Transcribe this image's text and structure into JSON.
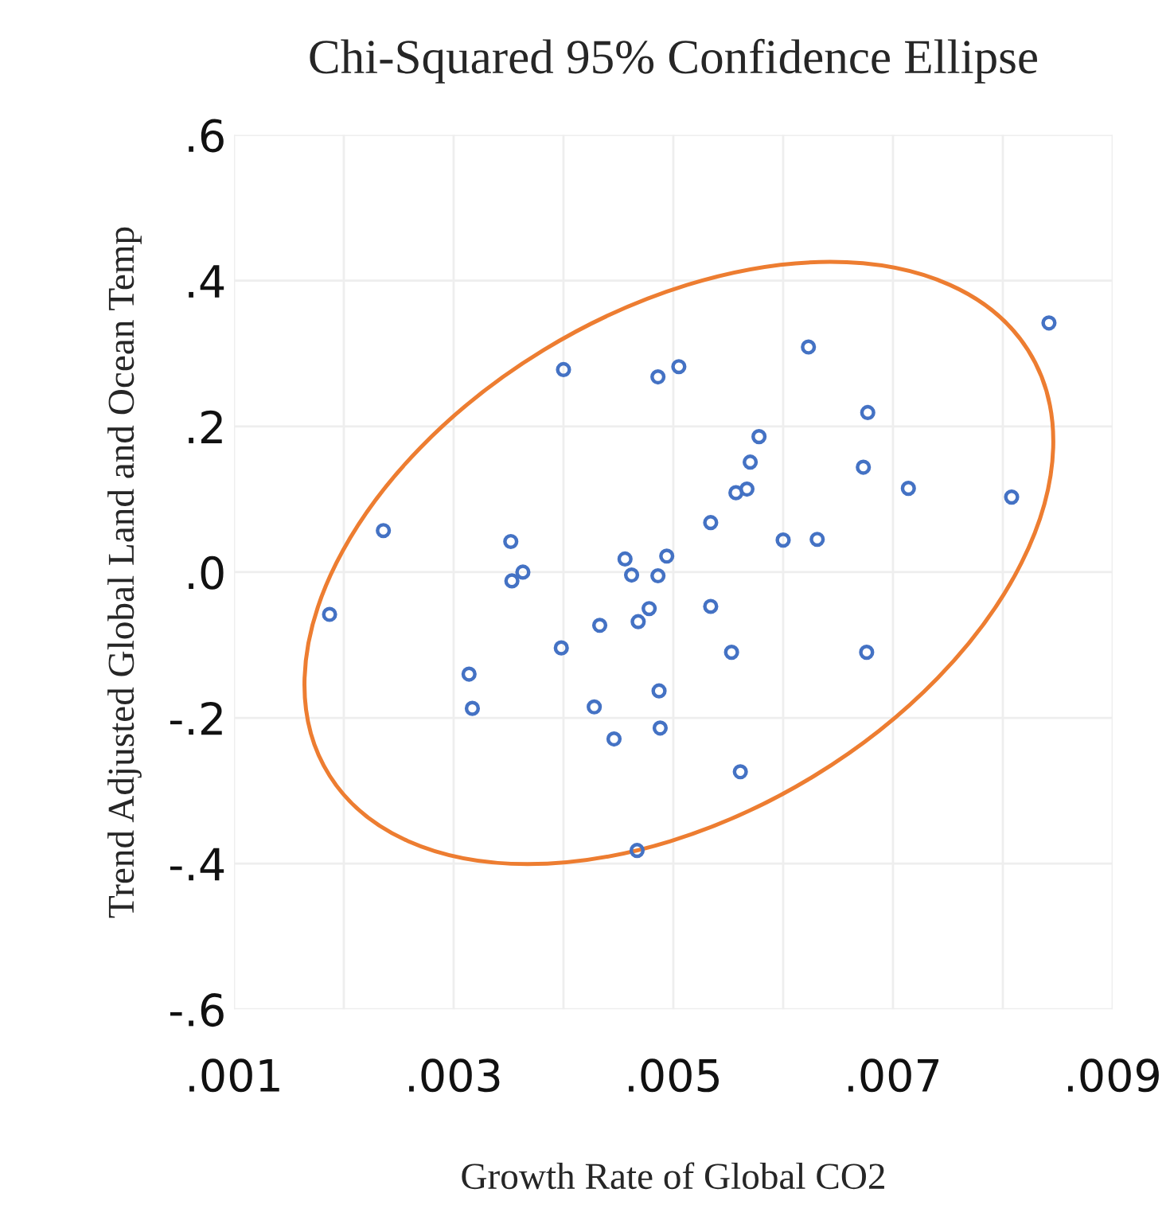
{
  "chart_data": {
    "type": "scatter",
    "title": "Chi-Squared 95% Confidence Ellipse",
    "xlabel": "Growth Rate of Global CO2",
    "ylabel": "Trend Adjusted Global Land and Ocean Temp",
    "xlim": [
      0.001,
      0.009
    ],
    "ylim": [
      -0.6,
      0.6
    ],
    "xticks": [
      {
        "value": 0.001,
        "label": ".001"
      },
      {
        "value": 0.002,
        "label": null
      },
      {
        "value": 0.003,
        "label": ".003"
      },
      {
        "value": 0.004,
        "label": null
      },
      {
        "value": 0.005,
        "label": ".005"
      },
      {
        "value": 0.006,
        "label": null
      },
      {
        "value": 0.007,
        "label": ".007"
      },
      {
        "value": 0.008,
        "label": null
      },
      {
        "value": 0.009,
        "label": ".009"
      }
    ],
    "yticks": [
      {
        "value": -0.6,
        "label": "-.6"
      },
      {
        "value": -0.4,
        "label": "-.4"
      },
      {
        "value": -0.2,
        "label": "-.2"
      },
      {
        "value": 0.0,
        "label": ".0"
      },
      {
        "value": 0.2,
        "label": ".2"
      },
      {
        "value": 0.4,
        "label": ".4"
      },
      {
        "value": 0.6,
        "label": ".6"
      }
    ],
    "grid": true,
    "marker": "circle",
    "series": [
      {
        "type": "scatter",
        "color": "#4472c4",
        "x": [
          0.00187,
          0.00236,
          0.00352,
          0.00353,
          0.00363,
          0.004,
          0.00456,
          0.00462,
          0.00433,
          0.00468,
          0.00398,
          0.00314,
          0.00317,
          0.00428,
          0.00446,
          0.00467,
          0.00478,
          0.00486,
          0.00494,
          0.00534,
          0.00486,
          0.00505,
          0.00623,
          0.00842,
          0.00677,
          0.00578,
          0.0057,
          0.00673,
          0.00557,
          0.00567,
          0.00714,
          0.00808,
          0.00534,
          0.006,
          0.00631,
          0.00553,
          0.00676,
          0.00487,
          0.00488,
          0.00561
        ],
        "values": [
          -0.058,
          0.057,
          0.042,
          -0.012,
          0.0,
          0.278,
          0.018,
          -0.004,
          -0.073,
          -0.068,
          -0.104,
          -0.14,
          -0.187,
          -0.185,
          -0.229,
          -0.382,
          -0.05,
          -0.005,
          0.022,
          -0.047,
          0.268,
          0.282,
          0.309,
          0.342,
          0.219,
          0.186,
          0.151,
          0.144,
          0.109,
          0.114,
          0.115,
          0.103,
          0.068,
          0.044,
          0.045,
          -0.11,
          -0.11,
          -0.163,
          -0.214,
          -0.274
        ]
      }
    ]
  }
}
